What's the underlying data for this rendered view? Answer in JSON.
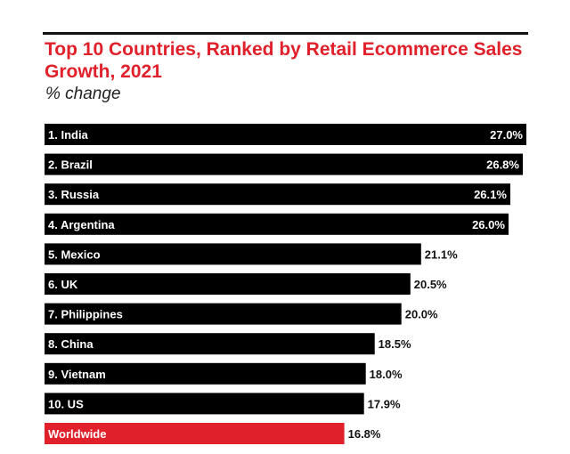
{
  "chart_data": {
    "type": "bar",
    "orientation": "horizontal",
    "title": "Top 10 Countries, Ranked by Retail Ecommerce Sales Growth, 2021",
    "subtitle": "% change",
    "categories": [
      "1. India",
      "2. Brazil",
      "3. Russia",
      "4. Argentina",
      "5. Mexico",
      "6. UK",
      "7. Philippines",
      "8. China",
      "9. Vietnam",
      "10. US",
      "Worldwide"
    ],
    "values": [
      27.0,
      26.8,
      26.1,
      26.0,
      21.1,
      20.5,
      20.0,
      18.5,
      18.0,
      17.9,
      16.8
    ],
    "value_labels": [
      "27.0%",
      "26.8%",
      "26.1%",
      "26.0%",
      "21.1%",
      "20.5%",
      "20.0%",
      "18.5%",
      "18.0%",
      "17.9%",
      "16.8%"
    ],
    "highlight_category": "Worldwide",
    "xlim": [
      0,
      27.0
    ],
    "grid": false,
    "legend": "none"
  },
  "colors": {
    "bar": "#000000",
    "highlight_bar": "#e0202a",
    "title": "#e0202a",
    "label_inside": "#ffffff",
    "label_outside": "#111111"
  }
}
